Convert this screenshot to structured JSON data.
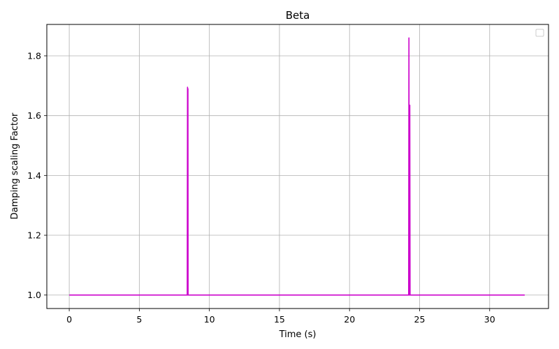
{
  "chart_data": {
    "type": "line",
    "title": "Beta",
    "xlabel": "Time (s)",
    "ylabel": "Damping scaling Factor",
    "xlim": [
      -1.6,
      34.2
    ],
    "ylim": [
      0.955,
      1.905
    ],
    "xticks": [
      {
        "value": 0,
        "label": "0"
      },
      {
        "value": 5,
        "label": "5"
      },
      {
        "value": 10,
        "label": "10"
      },
      {
        "value": 15,
        "label": "15"
      },
      {
        "value": 20,
        "label": "20"
      },
      {
        "value": 25,
        "label": "25"
      },
      {
        "value": 30,
        "label": "30"
      }
    ],
    "yticks": [
      {
        "value": 1.0,
        "label": "1.0"
      },
      {
        "value": 1.2,
        "label": "1.2"
      },
      {
        "value": 1.4,
        "label": "1.4"
      },
      {
        "value": 1.6,
        "label": "1.6"
      },
      {
        "value": 1.8,
        "label": "1.8"
      }
    ],
    "grid": true,
    "legend": {
      "position": "top-right",
      "entries": []
    },
    "series": [
      {
        "color": "#cc00cc",
        "x": [
          0,
          8.42,
          8.44,
          8.45,
          8.47,
          8.48,
          8.5,
          8.52,
          24.22,
          24.24,
          24.26,
          24.28,
          24.3,
          24.32,
          24.34,
          24.36,
          24.38,
          32.5
        ],
        "y": [
          1.0,
          1.0,
          1.695,
          1.6,
          1.69,
          1.0,
          1.0,
          1.0,
          1.0,
          1.86,
          1.0,
          1.0,
          1.635,
          1.0,
          1.0,
          1.0,
          1.0,
          1.0
        ]
      }
    ]
  }
}
